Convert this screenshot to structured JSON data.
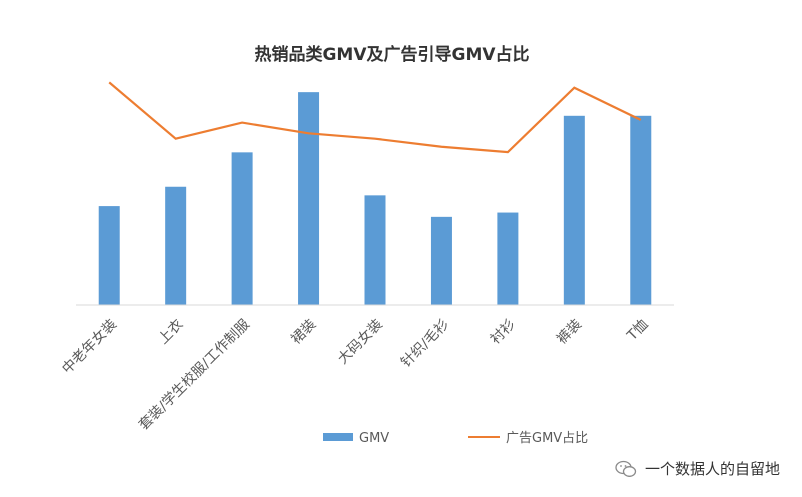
{
  "chart_data": {
    "type": "bar",
    "title": "热销品类GMV及广告引导GMV占比",
    "categories": [
      "中老年女装",
      "上衣",
      "套装/学生校服/工作制服",
      "裙装",
      "大码女装",
      "针织/毛衫",
      "衬衫",
      "裤装",
      "T恤"
    ],
    "series": [
      {
        "name": "GMV",
        "type": "bar",
        "color": "#5B9BD5",
        "values": [
          46,
          55,
          71,
          99,
          51,
          41,
          43,
          88,
          88
        ]
      },
      {
        "name": "广告GMV占比",
        "type": "line",
        "color": "#ED7D31",
        "values": [
          0.83,
          0.62,
          0.68,
          0.64,
          0.62,
          0.59,
          0.57,
          0.81,
          0.69
        ]
      }
    ],
    "legend": "bottom",
    "grid": false,
    "bar_ylim": [
      0,
      100
    ],
    "line_ylim": [
      0,
      0.85
    ]
  },
  "watermark": {
    "text": "一个数据人的自留地",
    "icon": "wechat-icon"
  }
}
